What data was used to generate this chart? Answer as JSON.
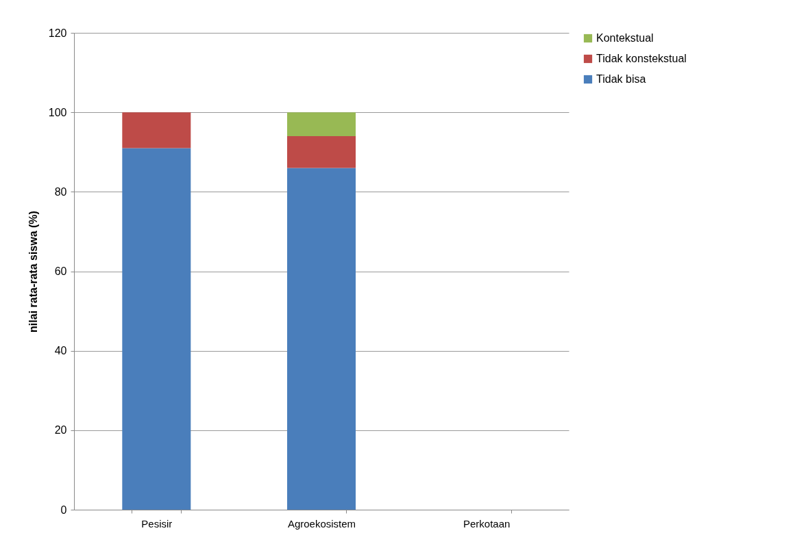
{
  "chart_data": {
    "type": "bar",
    "stacked": true,
    "ylabel": "nilai rata-rata siswa (%)",
    "categories": [
      "Pesisir",
      "Agroekosistem",
      "Perkotaan"
    ],
    "series": [
      {
        "name": "Tidak bisa",
        "color": "#4a7ebb",
        "values": [
          91,
          86,
          null
        ]
      },
      {
        "name": "Tidak konstekstual",
        "color": "#be4b48",
        "values": [
          9,
          8,
          null
        ]
      },
      {
        "name": "Kontekstual",
        "color": "#98b954",
        "values": [
          null,
          6,
          null
        ]
      }
    ],
    "ylim": [
      0,
      120
    ],
    "yticks": [
      0,
      20,
      40,
      60,
      80,
      100,
      120
    ],
    "grid": "y",
    "legend": "right"
  }
}
